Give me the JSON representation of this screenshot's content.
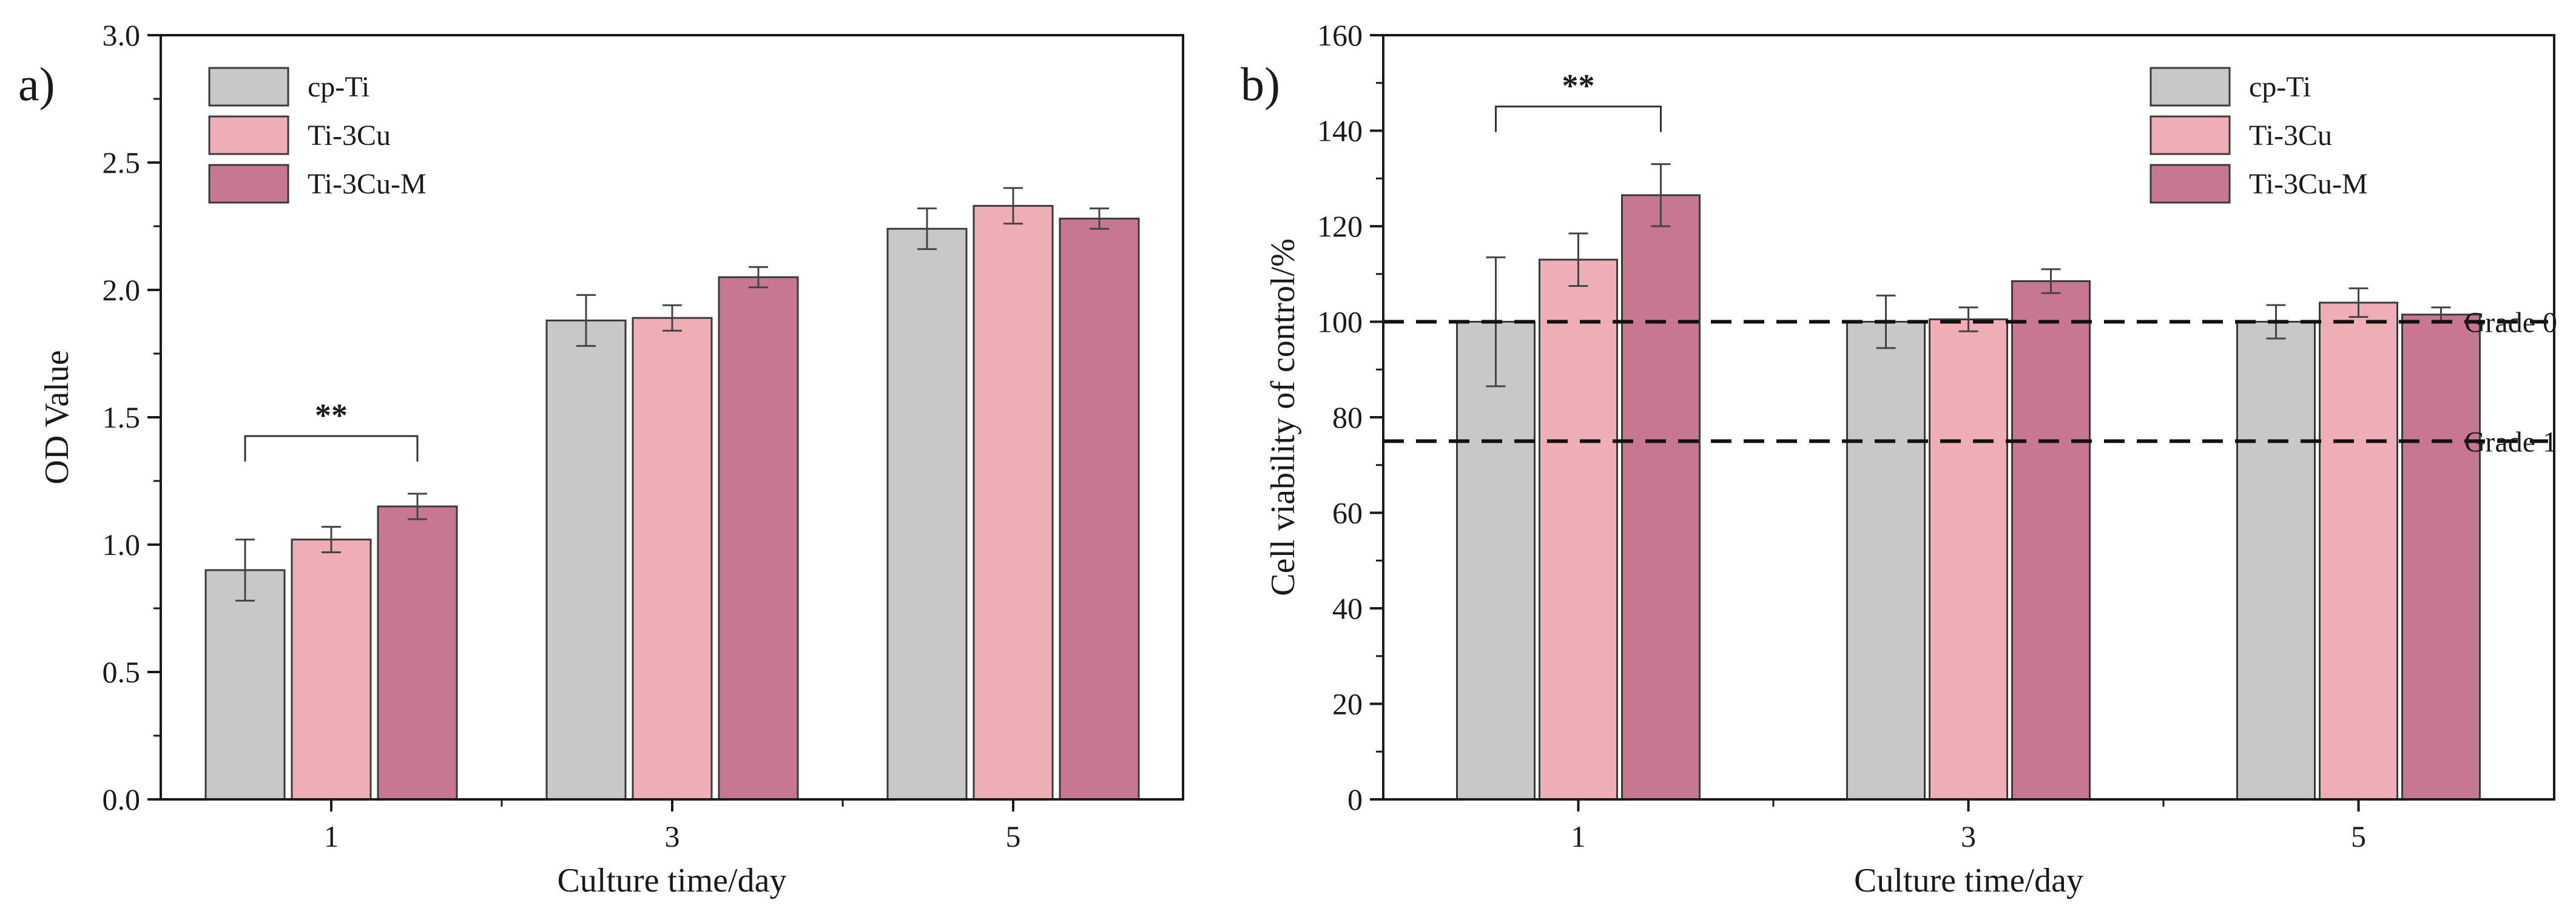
{
  "chart_data": [
    {
      "type": "bar",
      "panel_label": "a)",
      "xlabel": "Culture time/day",
      "ylabel": "OD Value",
      "categories": [
        "1",
        "3",
        "5"
      ],
      "ylim": [
        0.0,
        3.0
      ],
      "yticks": [
        "0.0",
        "0.5",
        "1.0",
        "1.5",
        "2.0",
        "2.5",
        "3.0"
      ],
      "legend_position": "top-left",
      "series": [
        {
          "name": "cp-Ti",
          "color": "#c8c8c8",
          "values": [
            0.9,
            1.88,
            2.24
          ],
          "errors": [
            0.12,
            0.1,
            0.08
          ]
        },
        {
          "name": "Ti-3Cu",
          "color": "#efaeb5",
          "values": [
            1.02,
            1.89,
            2.33
          ],
          "errors": [
            0.05,
            0.05,
            0.07
          ]
        },
        {
          "name": "Ti-3Cu-M",
          "color": "#c77890",
          "values": [
            1.15,
            2.05,
            2.28
          ],
          "errors": [
            0.05,
            0.04,
            0.04
          ]
        }
      ],
      "significance": [
        {
          "category": "1",
          "from_series": 0,
          "to_series": 2,
          "label": "**"
        }
      ],
      "reference_lines": []
    },
    {
      "type": "bar",
      "panel_label": "b)",
      "xlabel": "Culture time/day",
      "ylabel": "Cell viability of control/%",
      "categories": [
        "1",
        "3",
        "5"
      ],
      "ylim": [
        0,
        160
      ],
      "yticks": [
        "0",
        "20",
        "40",
        "60",
        "80",
        "100",
        "120",
        "140",
        "160"
      ],
      "legend_position": "top-right",
      "series": [
        {
          "name": "cp-Ti",
          "color": "#c8c8c8",
          "values": [
            100,
            100,
            100
          ],
          "errors": [
            13.5,
            5.5,
            3.5
          ]
        },
        {
          "name": "Ti-3Cu",
          "color": "#efaeb5",
          "values": [
            113,
            100.5,
            104
          ],
          "errors": [
            5.5,
            2.5,
            3
          ]
        },
        {
          "name": "Ti-3Cu-M",
          "color": "#c77890",
          "values": [
            126.5,
            108.5,
            101.5
          ],
          "errors": [
            6.5,
            2.5,
            1.5
          ]
        }
      ],
      "significance": [
        {
          "category": "1",
          "from_series": 0,
          "to_series": 2,
          "label": "**"
        }
      ],
      "reference_lines": [
        {
          "value": 100,
          "label": "Grade 0"
        },
        {
          "value": 75,
          "label": "Grade 1"
        }
      ]
    }
  ]
}
